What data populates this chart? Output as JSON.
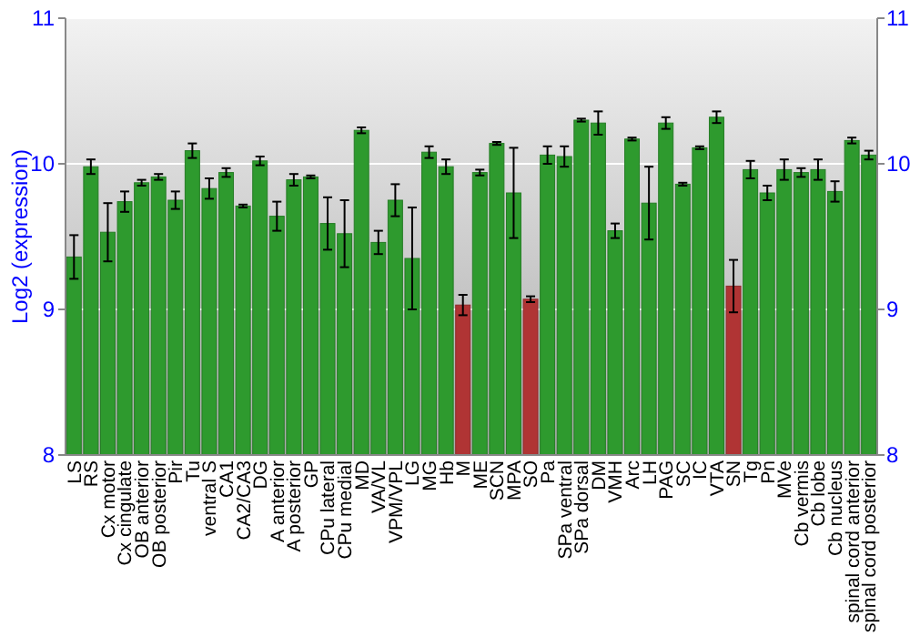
{
  "chart_data": {
    "type": "bar",
    "ylabel": "Log2 (expression)",
    "categories": [
      "LS",
      "RS",
      "Cx motor",
      "Cx cingulate",
      "OB anterior",
      "OB posterior",
      "Pir",
      "Tu",
      "ventral S",
      "CA1",
      "CA2/CA3",
      "DG",
      "A anterior",
      "A posterior",
      "GP",
      "CPu lateral",
      "CPu medial",
      "MD",
      "VA/VL",
      "VPM/VPL",
      "LG",
      "MG",
      "Hb",
      "M",
      "ME",
      "SCN",
      "MPA",
      "SO",
      "Pa",
      "SPa ventral",
      "SPa dorsal",
      "DM",
      "VMH",
      "Arc",
      "LH",
      "PAG",
      "SC",
      "IC",
      "VTA",
      "SN",
      "Tg",
      "Pn",
      "MVe",
      "Cb vermis",
      "Cb lobe",
      "Cb nucleus",
      "spinal cord anterior",
      "spinal cord posterior"
    ],
    "values": [
      9.36,
      9.98,
      9.53,
      9.74,
      9.87,
      9.91,
      9.75,
      10.09,
      9.83,
      9.94,
      9.71,
      10.02,
      9.64,
      9.89,
      9.91,
      9.59,
      9.52,
      10.23,
      9.46,
      9.75,
      9.35,
      10.08,
      9.98,
      9.03,
      9.94,
      10.14,
      9.8,
      9.07,
      10.06,
      10.05,
      10.3,
      10.28,
      9.54,
      10.17,
      9.73,
      10.28,
      9.86,
      10.11,
      10.32,
      9.16,
      9.96,
      9.8,
      9.96,
      9.94,
      9.96,
      9.81,
      10.16,
      10.06
    ],
    "errors": [
      0.15,
      0.05,
      0.2,
      0.07,
      0.02,
      0.02,
      0.06,
      0.05,
      0.07,
      0.03,
      0.01,
      0.03,
      0.1,
      0.04,
      0.01,
      0.18,
      0.23,
      0.02,
      0.08,
      0.11,
      0.35,
      0.04,
      0.05,
      0.07,
      0.02,
      0.01,
      0.31,
      0.02,
      0.06,
      0.07,
      0.01,
      0.08,
      0.05,
      0.01,
      0.25,
      0.04,
      0.01,
      0.01,
      0.04,
      0.18,
      0.06,
      0.05,
      0.07,
      0.03,
      0.07,
      0.07,
      0.02,
      0.03
    ],
    "colors": [
      "#2e9a2e",
      "#2e9a2e",
      "#2e9a2e",
      "#2e9a2e",
      "#2e9a2e",
      "#2e9a2e",
      "#2e9a2e",
      "#2e9a2e",
      "#2e9a2e",
      "#2e9a2e",
      "#2e9a2e",
      "#2e9a2e",
      "#2e9a2e",
      "#2e9a2e",
      "#2e9a2e",
      "#2e9a2e",
      "#2e9a2e",
      "#2e9a2e",
      "#2e9a2e",
      "#2e9a2e",
      "#2e9a2e",
      "#2e9a2e",
      "#2e9a2e",
      "#b03434",
      "#2e9a2e",
      "#2e9a2e",
      "#2e9a2e",
      "#b03434",
      "#2e9a2e",
      "#2e9a2e",
      "#2e9a2e",
      "#2e9a2e",
      "#2e9a2e",
      "#2e9a2e",
      "#2e9a2e",
      "#2e9a2e",
      "#2e9a2e",
      "#2e9a2e",
      "#2e9a2e",
      "#b03434",
      "#2e9a2e",
      "#2e9a2e",
      "#2e9a2e",
      "#2e9a2e",
      "#2e9a2e",
      "#2e9a2e",
      "#2e9a2e",
      "#2e9a2e"
    ],
    "ylim": [
      8,
      11
    ],
    "yticks": [
      8,
      9,
      10,
      11
    ],
    "y2lim": [
      8,
      11
    ],
    "y2ticks": [
      8,
      9,
      10,
      11
    ],
    "grid": "y"
  }
}
